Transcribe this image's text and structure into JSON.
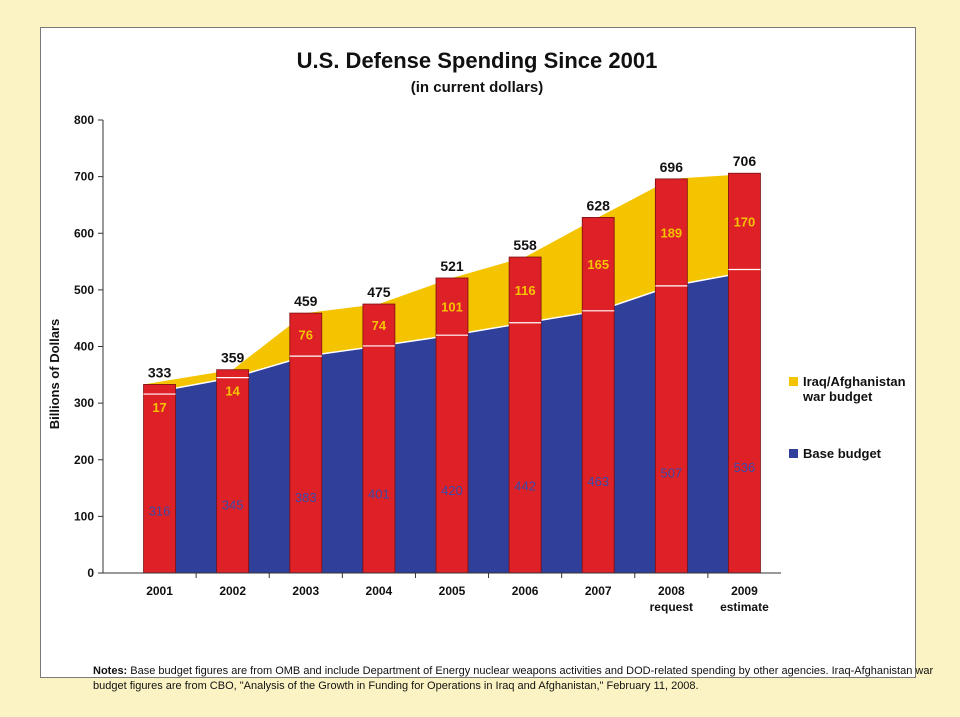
{
  "chart_data": {
    "type": "bar",
    "title": "U.S. Defense Spending Since 2001",
    "subtitle": "(in current dollars)",
    "ylabel": "Billions of Dollars",
    "xlabel": "",
    "ylim": [
      0,
      800
    ],
    "yticks": [
      0,
      100,
      200,
      300,
      400,
      500,
      600,
      700,
      800
    ],
    "stacked": true,
    "categories": [
      "2001",
      "2002",
      "2003",
      "2004",
      "2005",
      "2006",
      "2007",
      "2008",
      "2009"
    ],
    "category_sublabels": [
      "",
      "",
      "",
      "",
      "",
      "",
      "",
      "request",
      "estimate"
    ],
    "series": [
      {
        "name": "Base budget",
        "color": "#2f3f9a",
        "values": [
          316,
          345,
          383,
          401,
          420,
          442,
          463,
          507,
          536
        ]
      },
      {
        "name": "Iraq/Afghanistan war budget",
        "color": "#f5c400",
        "values": [
          17,
          14,
          76,
          74,
          101,
          116,
          165,
          189,
          170
        ]
      }
    ],
    "totals": [
      333,
      359,
      459,
      475,
      521,
      558,
      628,
      696,
      706
    ],
    "bar_color": "#de2027",
    "legend": {
      "position": "right",
      "entries": [
        {
          "lines": [
            "Iraq/Afghanistan",
            "war budget"
          ],
          "color": "#f5c400"
        },
        {
          "lines": [
            "Base budget"
          ],
          "color": "#2f3f9a"
        }
      ]
    },
    "grid": false
  },
  "notes": {
    "label": "Notes:",
    "text": "Base budget figures are from OMB and include Department of Energy nuclear weapons activities and DOD-related spending by other agencies. Iraq-Afghanistan war budget figures are from CBO, \"Analysis of the Growth in Funding for Operations in Iraq and Afghanistan,\" February 11, 2008."
  }
}
